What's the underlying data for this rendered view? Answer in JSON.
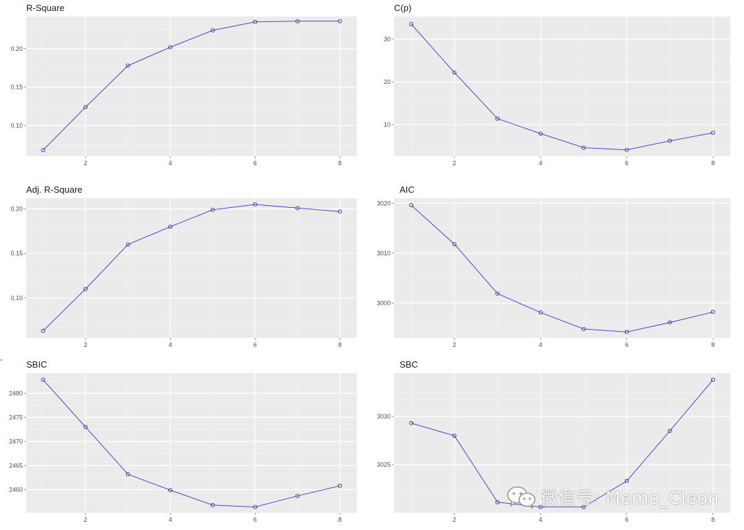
{
  "chart_data": [
    {
      "type": "line",
      "title": "R-Square",
      "x": [
        1,
        2,
        3,
        4,
        5,
        6,
        7,
        8
      ],
      "values": [
        0.068,
        0.124,
        0.178,
        0.202,
        0.224,
        0.235,
        0.236,
        0.236
      ],
      "xlim": [
        0.6,
        8.4
      ],
      "ylim": [
        0.06,
        0.242
      ],
      "xticks": [
        2,
        4,
        6,
        8
      ],
      "yticks": [
        0.1,
        0.15,
        0.2
      ],
      "ytick_labels": [
        "0.10",
        "0.15",
        "0.20"
      ],
      "color": "#3333cc",
      "grid": true
    },
    {
      "type": "line",
      "title": "C(p)",
      "x": [
        1,
        2,
        3,
        4,
        5,
        6,
        7,
        8
      ],
      "values": [
        33.5,
        22.2,
        11.4,
        7.9,
        4.6,
        4.1,
        6.2,
        8.1
      ],
      "xlim": [
        0.6,
        8.4
      ],
      "ylim": [
        2.6,
        35.3
      ],
      "xticks": [
        2,
        4,
        6,
        8
      ],
      "yticks": [
        10,
        20,
        30
      ],
      "ytick_labels": [
        "10",
        "20",
        "30"
      ],
      "color": "#3333cc",
      "grid": true
    },
    {
      "type": "line",
      "title": "Adj. R-Square",
      "x": [
        1,
        2,
        3,
        4,
        5,
        6,
        7,
        8
      ],
      "values": [
        0.063,
        0.11,
        0.16,
        0.18,
        0.199,
        0.205,
        0.201,
        0.197
      ],
      "xlim": [
        0.6,
        8.4
      ],
      "ylim": [
        0.055,
        0.212
      ],
      "xticks": [
        2,
        4,
        6,
        8
      ],
      "yticks": [
        0.1,
        0.15,
        0.2
      ],
      "ytick_labels": [
        "0.10",
        "0.15",
        "0.20"
      ],
      "color": "#3333cc",
      "grid": true
    },
    {
      "type": "line",
      "title": "AIC",
      "x": [
        1,
        2,
        3,
        4,
        5,
        6,
        7,
        8
      ],
      "values": [
        3019.6,
        3011.8,
        3001.9,
        2998.1,
        2994.8,
        2994.2,
        2996.1,
        2998.2
      ],
      "xlim": [
        0.6,
        8.4
      ],
      "ylim": [
        2993.0,
        3021.0
      ],
      "xticks": [
        2,
        4,
        6,
        8
      ],
      "yticks": [
        3000,
        3010,
        3020
      ],
      "ytick_labels": [
        "3000",
        "3010",
        "3020"
      ],
      "color": "#3333cc",
      "grid": true
    },
    {
      "type": "line",
      "title": "SBIC",
      "x": [
        1,
        2,
        3,
        4,
        5,
        6,
        7,
        8
      ],
      "values": [
        2482.8,
        2473.0,
        2463.2,
        2459.9,
        2456.8,
        2456.4,
        2458.7,
        2460.8
      ],
      "xlim": [
        0.6,
        8.4
      ],
      "ylim": [
        2455.2,
        2484.2
      ],
      "xticks": [
        2,
        4,
        6,
        8
      ],
      "yticks": [
        2460,
        2465,
        2470,
        2475,
        2480
      ],
      "ytick_labels": [
        "2460",
        "2465",
        "2470",
        "2475",
        "2480"
      ],
      "color": "#3333cc",
      "grid": true
    },
    {
      "type": "line",
      "title": "SBC",
      "x": [
        1,
        2,
        3,
        4,
        5,
        6,
        7,
        8
      ],
      "values": [
        3029.3,
        3028.0,
        3021.1,
        3020.6,
        3020.6,
        3023.3,
        3028.5,
        3033.8
      ],
      "xlim": [
        0.6,
        8.4
      ],
      "ylim": [
        3020.0,
        3034.5
      ],
      "xticks": [
        2,
        4,
        6,
        8
      ],
      "yticks": [
        3025,
        3030
      ],
      "ytick_labels": [
        "3025",
        "3030"
      ],
      "color": "#3333cc",
      "grid": true
    }
  ],
  "watermark": {
    "text": "微信号: Memo_Cleon",
    "icon": "wechat-icon"
  },
  "corner_mark": "-"
}
